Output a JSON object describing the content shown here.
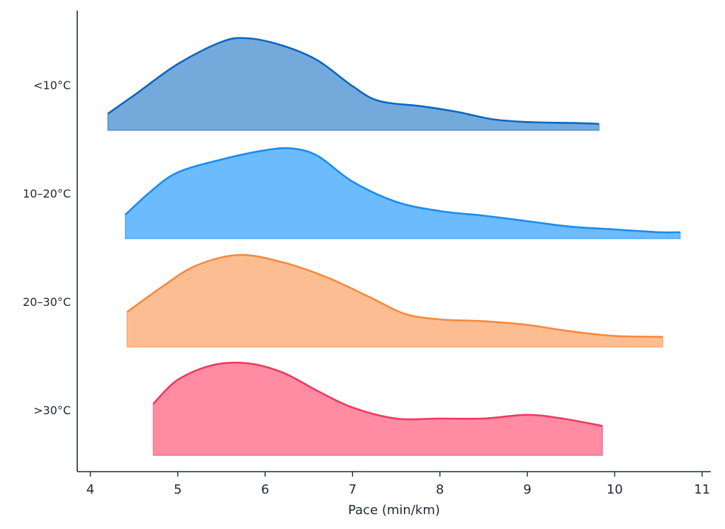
{
  "chart_data": {
    "type": "area",
    "xlabel": "Pace (min/km)",
    "ylabel": "",
    "xlim": [
      3.85,
      11.1
    ],
    "x_ticks": [
      4,
      5,
      6,
      7,
      8,
      9,
      10,
      11
    ],
    "grid": false,
    "legend": "none",
    "series": [
      {
        "name": "<10°C",
        "color": "#0b66c3",
        "fill": "#74aadb",
        "x": [
          4.2,
          4.5,
          5.0,
          5.5,
          5.8,
          6.2,
          6.6,
          7.0,
          7.3,
          7.8,
          8.2,
          8.6,
          9.0,
          9.5,
          9.82
        ],
        "height": [
          0.18,
          0.38,
          0.72,
          0.96,
          1.0,
          0.92,
          0.76,
          0.48,
          0.32,
          0.26,
          0.2,
          0.12,
          0.09,
          0.08,
          0.07
        ]
      },
      {
        "name": "10–20°C",
        "color": "#1a8cf0",
        "fill": "#6cbbfd",
        "x": [
          4.4,
          4.7,
          5.0,
          5.5,
          6.0,
          6.3,
          6.6,
          7.0,
          7.5,
          8.0,
          8.5,
          9.0,
          9.5,
          10.0,
          10.5,
          10.75
        ],
        "height": [
          0.26,
          0.52,
          0.72,
          0.86,
          0.96,
          0.98,
          0.9,
          0.62,
          0.4,
          0.3,
          0.25,
          0.19,
          0.13,
          0.1,
          0.07,
          0.07
        ]
      },
      {
        "name": "20–30°C",
        "color": "#f7893e",
        "fill": "#fdbd92",
        "x": [
          4.42,
          4.8,
          5.2,
          5.7,
          6.2,
          6.7,
          7.2,
          7.6,
          8.0,
          8.5,
          9.0,
          9.5,
          10.0,
          10.55
        ],
        "height": [
          0.38,
          0.64,
          0.88,
          1.0,
          0.92,
          0.76,
          0.54,
          0.36,
          0.3,
          0.28,
          0.24,
          0.17,
          0.12,
          0.11
        ]
      },
      {
        "name": ">30°C",
        "color": "#ef3960",
        "fill": "#ff8ca2",
        "x": [
          4.72,
          5.0,
          5.4,
          5.8,
          6.2,
          6.6,
          7.0,
          7.5,
          8.0,
          8.5,
          9.0,
          9.4,
          9.86
        ],
        "height": [
          0.56,
          0.82,
          0.98,
          1.0,
          0.9,
          0.7,
          0.52,
          0.4,
          0.4,
          0.4,
          0.44,
          0.4,
          0.32
        ]
      }
    ]
  }
}
